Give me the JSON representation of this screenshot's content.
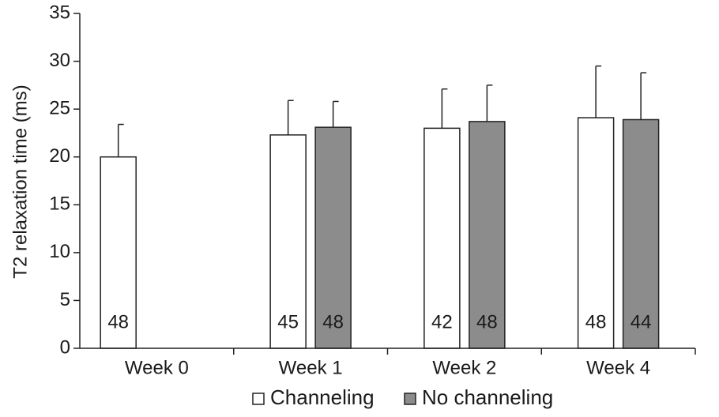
{
  "chart_data": {
    "type": "bar",
    "title": "",
    "xlabel": "",
    "ylabel": "T2 relaxation time (ms)",
    "ylim": [
      0,
      35
    ],
    "yticks": [
      0,
      5,
      10,
      15,
      20,
      25,
      30,
      35
    ],
    "grid": false,
    "legend_position": "bottom",
    "categories": [
      "Week 0",
      "Week 1",
      "Week 2",
      "Week 4"
    ],
    "series": [
      {
        "name": "Channeling",
        "color": "#ffffff",
        "values": [
          20.0,
          22.3,
          23.0,
          24.1
        ],
        "error": [
          3.4,
          3.6,
          4.1,
          5.4
        ],
        "n": [
          "48",
          "45",
          "42",
          "48"
        ]
      },
      {
        "name": "No channeling",
        "color": "#8c8c8c",
        "values": [
          null,
          23.1,
          23.7,
          23.9
        ],
        "error": [
          null,
          2.7,
          3.8,
          4.9
        ],
        "n": [
          null,
          "48",
          "48",
          "44"
        ]
      }
    ]
  }
}
